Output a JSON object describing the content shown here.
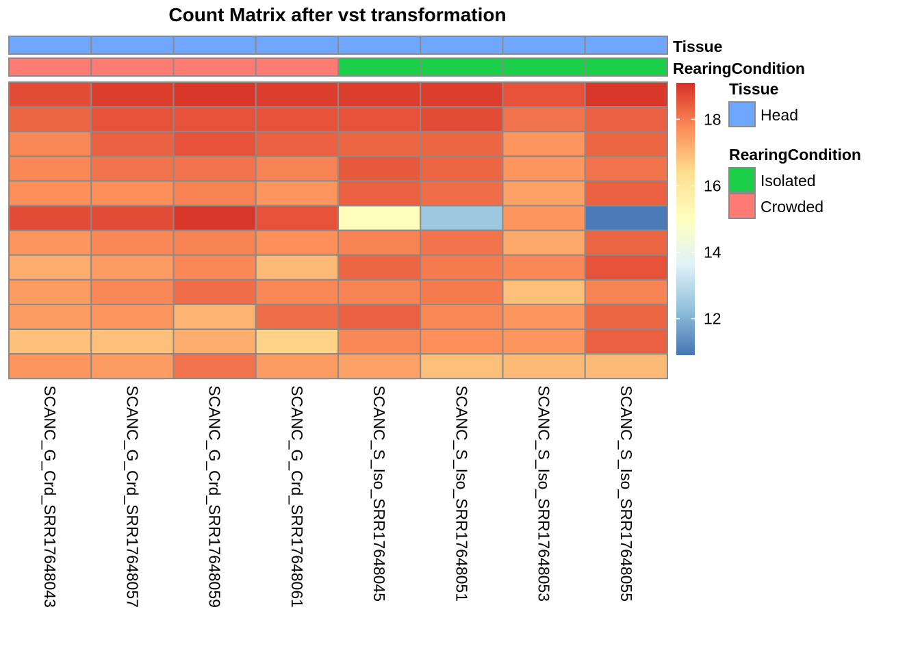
{
  "chart_data": {
    "type": "heatmap",
    "title": "Count Matrix after vst transformation",
    "columns": [
      "SCANC_G_Crd_SRR17648043",
      "SCANC_G_Crd_SRR17648057",
      "SCANC_G_Crd_SRR17648059",
      "SCANC_G_Crd_SRR17648061",
      "SCANC_S_Iso_SRR17648045",
      "SCANC_S_Iso_SRR17648051",
      "SCANC_S_Iso_SRR17648053",
      "SCANC_S_Iso_SRR17648055"
    ],
    "values": [
      [
        18.7,
        18.9,
        19.0,
        18.9,
        18.9,
        18.9,
        18.6,
        19.0
      ],
      [
        18.3,
        18.6,
        18.6,
        18.6,
        18.6,
        18.7,
        18.1,
        18.4
      ],
      [
        17.8,
        18.4,
        18.6,
        18.4,
        18.3,
        18.3,
        17.6,
        18.3
      ],
      [
        17.8,
        18.1,
        18.1,
        17.9,
        18.5,
        18.3,
        17.6,
        18.1
      ],
      [
        17.7,
        17.7,
        17.9,
        17.6,
        18.4,
        18.2,
        17.4,
        18.4
      ],
      [
        18.7,
        18.7,
        19.0,
        18.6,
        15.1,
        12.5,
        17.6,
        11.0
      ],
      [
        17.6,
        17.8,
        17.9,
        17.7,
        17.9,
        18.1,
        17.3,
        18.3
      ],
      [
        17.2,
        17.5,
        17.8,
        17.0,
        18.3,
        18.0,
        17.8,
        18.6
      ],
      [
        17.5,
        17.8,
        18.2,
        17.8,
        17.9,
        18.0,
        16.9,
        17.9
      ],
      [
        17.5,
        17.6,
        17.1,
        18.2,
        18.4,
        17.8,
        17.6,
        18.3
      ],
      [
        16.9,
        16.9,
        17.2,
        16.6,
        17.8,
        17.7,
        17.6,
        18.4
      ],
      [
        17.6,
        17.5,
        18.1,
        17.5,
        17.4,
        16.9,
        17.0,
        17.0
      ]
    ],
    "color_scale": {
      "min": 10.9,
      "max": 19.1,
      "stops": [
        "#4575B4",
        "#91BFDB",
        "#E0F3F8",
        "#FFFFBF",
        "#FEE090",
        "#FC8D59",
        "#D73027"
      ],
      "ticks": [
        12,
        14,
        16,
        18
      ]
    },
    "annotations": [
      {
        "name": "Tissue",
        "values": [
          "Head",
          "Head",
          "Head",
          "Head",
          "Head",
          "Head",
          "Head",
          "Head"
        ],
        "levels": [
          {
            "label": "Head",
            "color": "#6FA6FF"
          }
        ]
      },
      {
        "name": "RearingCondition",
        "values": [
          "Crowded",
          "Crowded",
          "Crowded",
          "Crowded",
          "Isolated",
          "Isolated",
          "Isolated",
          "Isolated"
        ],
        "levels": [
          {
            "label": "Isolated",
            "color": "#1CCF4A"
          },
          {
            "label": "Crowded",
            "color": "#FF7B73"
          }
        ]
      }
    ],
    "legend_position": "right",
    "grid": true
  }
}
